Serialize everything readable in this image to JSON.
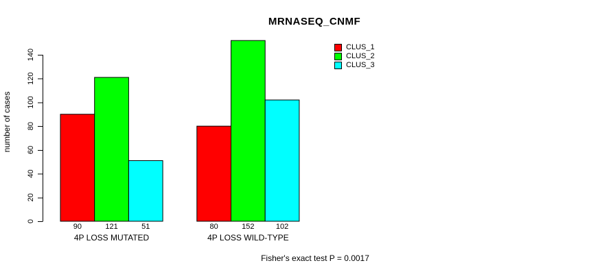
{
  "chart_data": {
    "type": "bar",
    "title": "MRNASEQ_CNMF",
    "xlabel": "",
    "ylabel": "number of cases",
    "categories": [
      "4P LOSS MUTATED",
      "4P LOSS WILD-TYPE"
    ],
    "series": [
      {
        "name": "CLUS_1",
        "color": "#ff0000",
        "values": [
          90,
          80
        ]
      },
      {
        "name": "CLUS_2",
        "color": "#00ff00",
        "values": [
          121,
          152
        ]
      },
      {
        "name": "CLUS_3",
        "color": "#00ffff",
        "values": [
          51,
          102
        ]
      }
    ],
    "value_labels": [
      [
        90,
        121,
        51
      ],
      [
        80,
        152,
        102
      ]
    ],
    "yticks": [
      0,
      20,
      40,
      60,
      80,
      100,
      120,
      140
    ],
    "ylim": [
      0,
      152
    ],
    "grid": false,
    "legend_position": "top-right",
    "bar_border_color": "#000000",
    "axis_color": "#000000",
    "footnote": "Fisher's exact test P = 0.0017"
  }
}
